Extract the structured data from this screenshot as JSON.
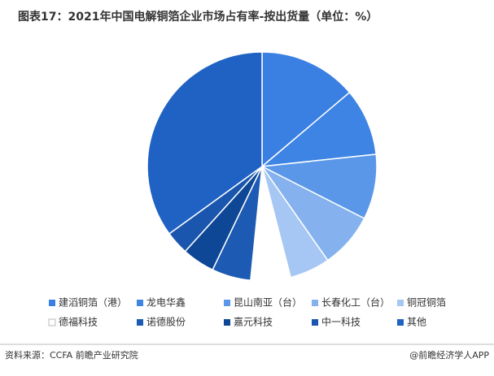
{
  "chart_data": {
    "type": "pie",
    "title": "图表17：2021年中国电解铜箔企业市场占有率-按出货量（单位：%）",
    "categories": [
      "建滔铜箔（港）",
      "龙电华鑫",
      "昆山南亚（台）",
      "长春化工（台）",
      "铜冠铜箔",
      "德福科技",
      "诺德股份",
      "嘉元科技",
      "中一科技",
      "其他"
    ],
    "values": [
      13.8,
      9.5,
      9.2,
      7.8,
      5.7,
      5.6,
      5.5,
      4.6,
      3.3,
      35
    ],
    "colors": [
      "#3a7fe2",
      "#3d84e4",
      "#5a97e8",
      "#85b2ee",
      "#a6c7f3",
      "#ffffff",
      "#1d5ab3",
      "#0e4795",
      "#1a56ad",
      "#1f62c4"
    ],
    "source": "资料来源：CCFA 前瞻产业研究院",
    "credit": "@前瞻经济学人APP"
  }
}
